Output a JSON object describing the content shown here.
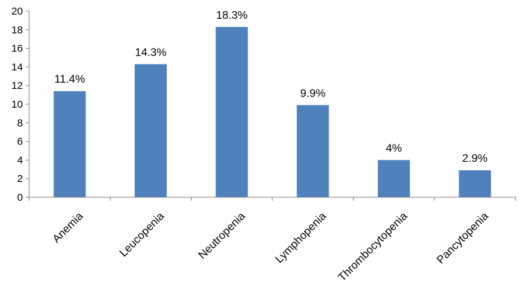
{
  "chart_data": {
    "type": "bar",
    "categories": [
      "Anemia",
      "Leucopenia",
      "Neutropenia",
      "Lymphopenia",
      "Thrombocytopenia",
      "Pancytopenia"
    ],
    "values": [
      11.4,
      14.3,
      18.3,
      9.9,
      4,
      2.9
    ],
    "data_labels": [
      "11.4%",
      "14.3%",
      "18.3%",
      "9.9%",
      "4%",
      "2.9%"
    ],
    "ylim": [
      0,
      20
    ],
    "yticks": [
      0,
      2,
      4,
      6,
      8,
      10,
      12,
      14,
      16,
      18,
      20
    ],
    "grid": false,
    "bar_color": "#4F81BD",
    "title": "",
    "xlabel": "",
    "ylabel": ""
  }
}
